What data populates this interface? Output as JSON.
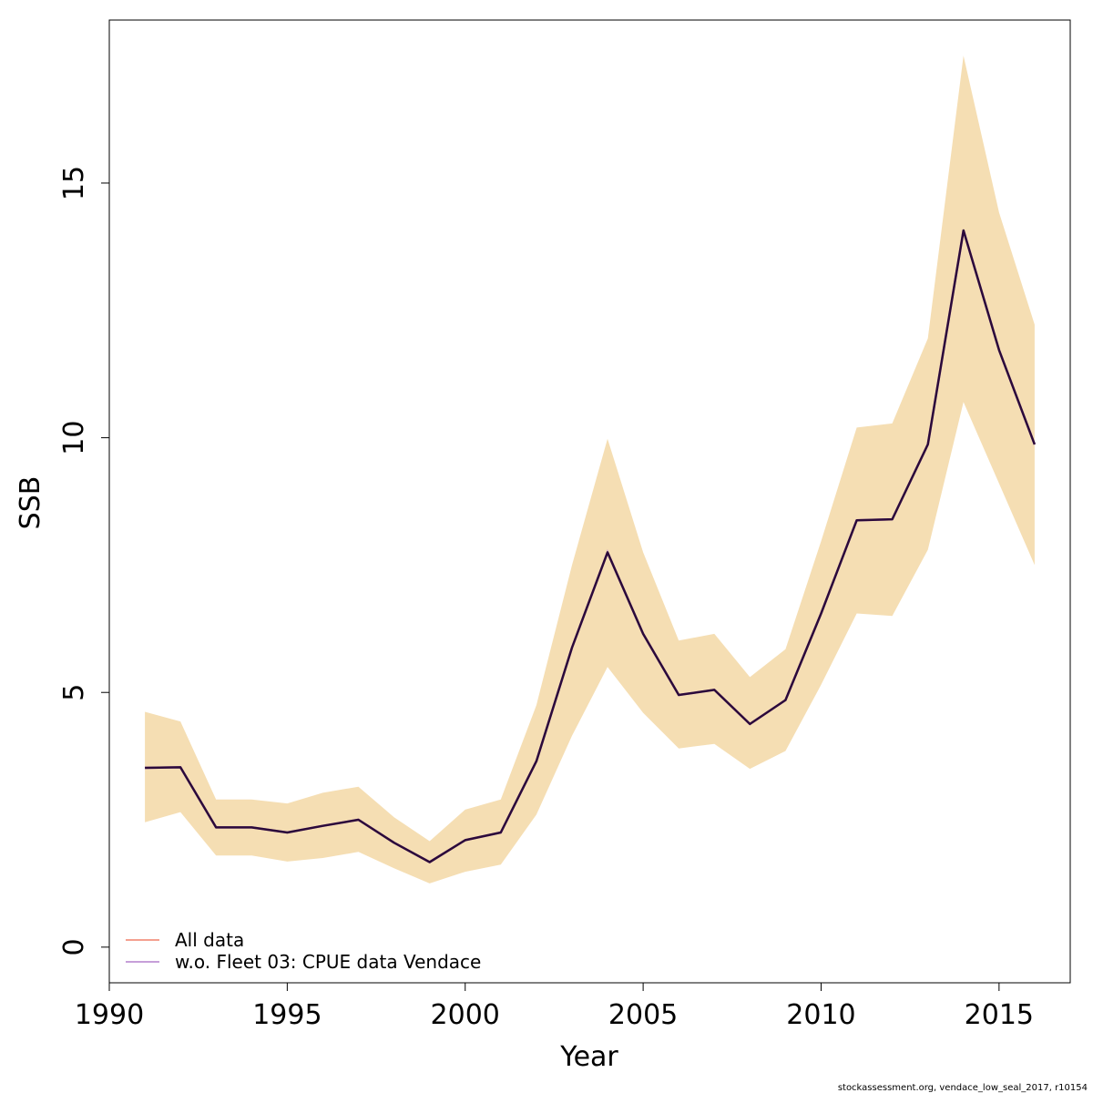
{
  "chart_data": {
    "type": "line",
    "title": "",
    "xlabel": "Year",
    "ylabel": "SSB",
    "xlim": [
      1990,
      2017
    ],
    "ylim": [
      -0.7,
      18.2
    ],
    "x_ticks": [
      "1990",
      "1995",
      "2000",
      "2005",
      "2010",
      "2015"
    ],
    "y_ticks": [
      "0",
      "5",
      "10",
      "15"
    ],
    "grid": false,
    "legend_position": "bottom-left",
    "x": [
      1991,
      1992,
      1993,
      1994,
      1995,
      1996,
      1997,
      1998,
      1999,
      2000,
      2001,
      2002,
      2003,
      2004,
      2005,
      2006,
      2007,
      2008,
      2009,
      2010,
      2011,
      2012,
      2013,
      2014,
      2015,
      2016
    ],
    "band": {
      "lower": [
        2.45,
        2.65,
        1.8,
        1.8,
        1.68,
        1.75,
        1.87,
        1.55,
        1.25,
        1.48,
        1.62,
        2.6,
        4.15,
        5.5,
        4.6,
        3.9,
        3.99,
        3.5,
        3.85,
        5.15,
        6.55,
        6.5,
        7.8,
        10.7,
        9.1,
        7.5
      ],
      "upper": [
        4.62,
        4.43,
        2.9,
        2.9,
        2.82,
        3.03,
        3.15,
        2.55,
        2.08,
        2.7,
        2.9,
        4.75,
        7.5,
        9.98,
        7.75,
        6.02,
        6.15,
        5.3,
        5.85,
        7.97,
        10.2,
        10.28,
        11.95,
        17.5,
        14.42,
        12.22
      ],
      "color": "#f5deb3"
    },
    "series": [
      {
        "name": "All data",
        "color": "#f4a090",
        "values": [
          3.52,
          3.53,
          2.35,
          2.35,
          2.25,
          2.38,
          2.5,
          2.05,
          1.67,
          2.1,
          2.25,
          3.65,
          5.88,
          7.75,
          6.15,
          4.95,
          5.05,
          4.38,
          4.85,
          6.55,
          8.38,
          8.4,
          9.87,
          14.07,
          11.72,
          9.87
        ]
      },
      {
        "name": "w.o. Fleet 03:  CPUE data Vendace",
        "color": "#c69fd9",
        "values": [
          3.52,
          3.53,
          2.35,
          2.35,
          2.25,
          2.38,
          2.5,
          2.05,
          1.67,
          2.1,
          2.25,
          3.65,
          5.88,
          7.75,
          6.15,
          4.95,
          5.05,
          4.38,
          4.85,
          6.55,
          8.38,
          8.4,
          9.87,
          14.07,
          11.72,
          9.87
        ]
      }
    ],
    "overlay_line_color": "#2b0a3a"
  },
  "footnote": "stockassessment.org, vendace_low_seal_2017, r10154"
}
